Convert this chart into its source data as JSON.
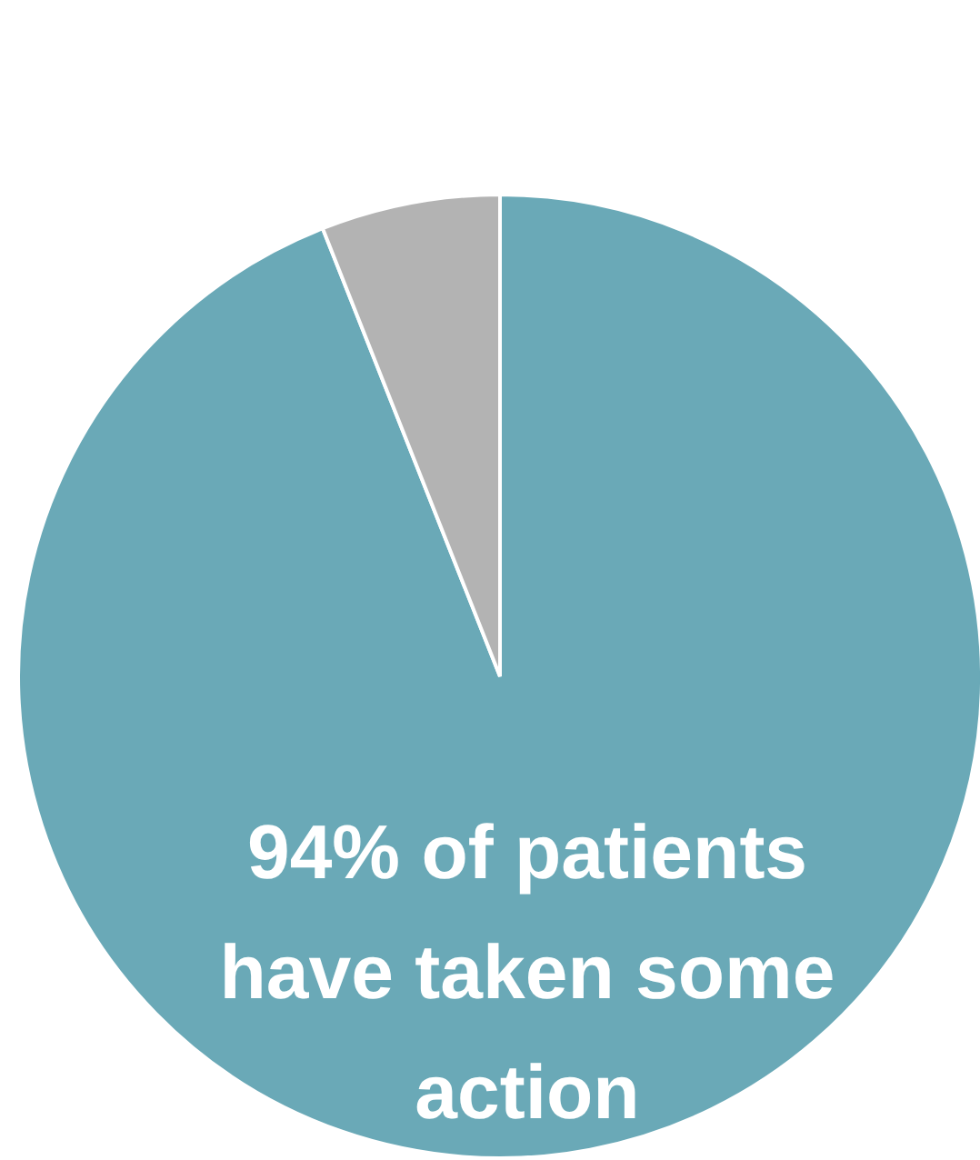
{
  "chart_data": {
    "type": "pie",
    "categories": [
      null,
      null
    ],
    "values": [
      94,
      6
    ],
    "colors": [
      "#6aa9b7",
      "#b3b3b3"
    ],
    "annotations": [
      "94% of patients\nhave taken some\naction"
    ]
  }
}
